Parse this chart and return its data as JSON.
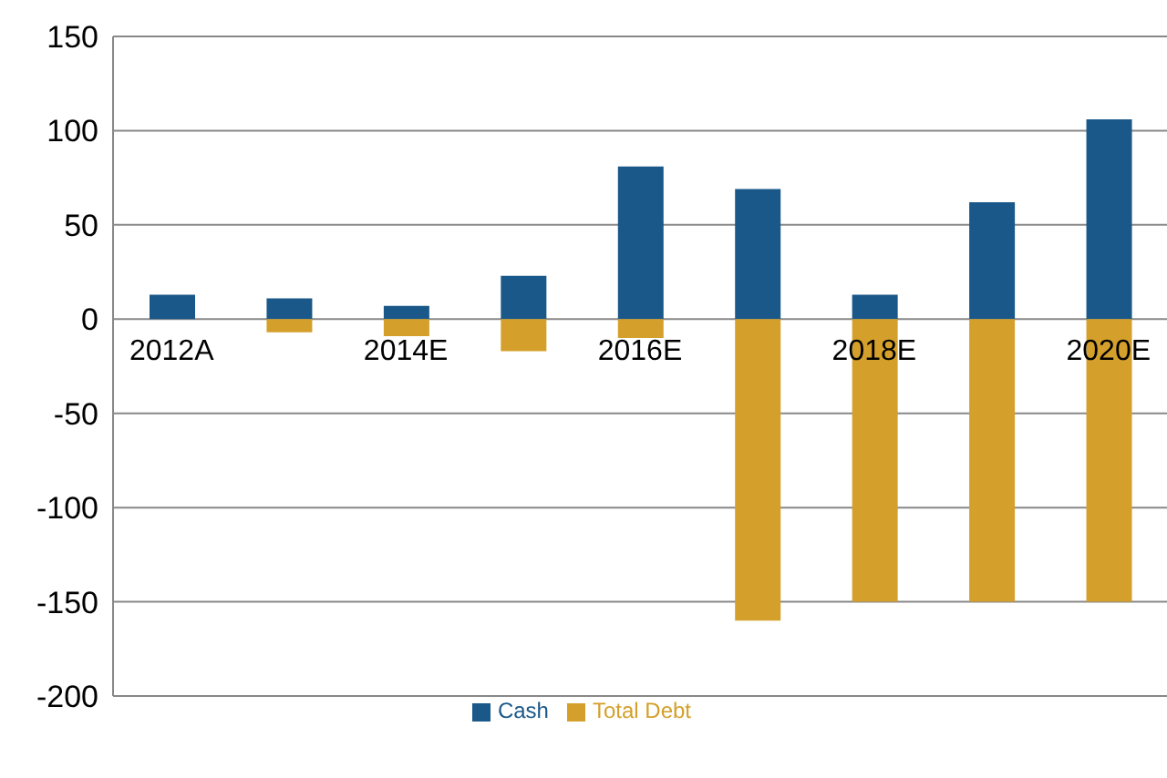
{
  "chart_data": {
    "type": "bar",
    "stacked": true,
    "categories": [
      "2012A",
      null,
      "2014E",
      null,
      "2016E",
      null,
      "2018E",
      null,
      "2020E"
    ],
    "series": [
      {
        "name": "Cash",
        "color": "#1a5889",
        "values": [
          13,
          11,
          7,
          23,
          81,
          69,
          13,
          62,
          106
        ]
      },
      {
        "name": "Total Debt",
        "color": "#d4a02b",
        "values": [
          0,
          -7,
          -9,
          -17,
          -10,
          -160,
          -150,
          -150,
          -150
        ]
      }
    ],
    "ylim": [
      -200,
      150
    ],
    "yticks": [
      -200,
      -150,
      -100,
      -50,
      0,
      50,
      100,
      150
    ],
    "grid": "y",
    "legend": "bottom"
  }
}
